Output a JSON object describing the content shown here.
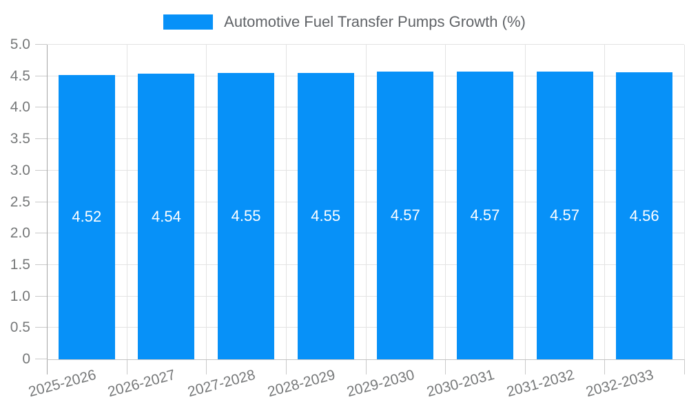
{
  "chart_data": {
    "type": "bar",
    "title": "Automotive Fuel Transfer Pumps Growth (%)",
    "xlabel": "",
    "ylabel": "",
    "categories": [
      "2025-2026",
      "2026-2027",
      "2027-2028",
      "2028-2029",
      "2029-2030",
      "2030-2031",
      "2031-2032",
      "2032-2033"
    ],
    "values": [
      4.52,
      4.54,
      4.55,
      4.55,
      4.57,
      4.57,
      4.57,
      4.56
    ],
    "bar_labels": [
      "4.52",
      "4.54",
      "4.55",
      "4.55",
      "4.57",
      "4.57",
      "4.57",
      "4.56"
    ],
    "ylim": [
      0,
      5
    ],
    "ytick_step": 0.5,
    "yticks": [
      {
        "label": "5.0",
        "value": 5
      },
      {
        "label": "4.5",
        "value": 4.5
      },
      {
        "label": "4.0",
        "value": 4
      },
      {
        "label": "3.5",
        "value": 3.5
      },
      {
        "label": "3.0",
        "value": 3
      },
      {
        "label": "2.5",
        "value": 2.5
      },
      {
        "label": "2.0",
        "value": 2
      },
      {
        "label": "1.5",
        "value": 1.5
      },
      {
        "label": "1.0",
        "value": 1
      },
      {
        "label": "0.5",
        "value": 0.5
      },
      {
        "label": "0",
        "value": 0
      }
    ],
    "grid": true,
    "legend_position": "top-center",
    "x_tick_rotation_deg": -15,
    "colors": {
      "bar": "#0791F8",
      "bar_value_label": "#FFFFFF",
      "grid": "#E3E3E3",
      "axis_line": "#C3C3C3",
      "spine": "#A6A6A6",
      "tick": "#C9C9C9",
      "axis_label": "#767879",
      "title": "#606367",
      "background": "#FFFFFF"
    }
  }
}
